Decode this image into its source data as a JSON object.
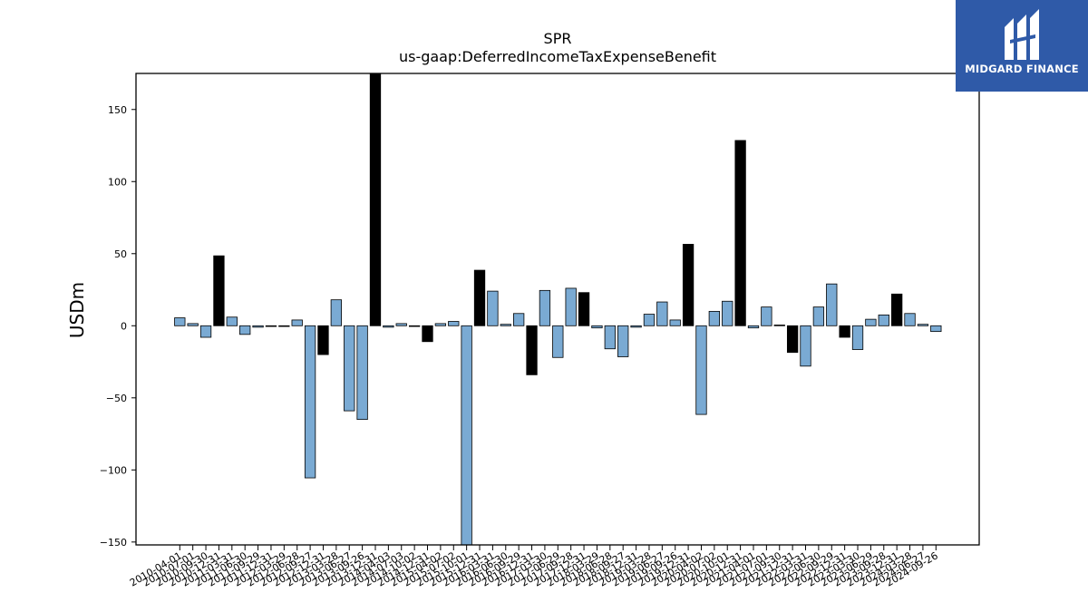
{
  "logo": {
    "text": "MIDGARD FINANCE",
    "icon": "midgard-logo-icon",
    "background": "#2f5aa8"
  },
  "chart_data": {
    "type": "bar",
    "title": "SPR",
    "subtitle": "us-gaap:DeferredIncomeTaxExpenseBenefit",
    "ylabel": "USDm",
    "xlabel": "",
    "ylim": [
      -152,
      175
    ],
    "yticks": [
      -150,
      -100,
      -50,
      0,
      50,
      100,
      150
    ],
    "ytick_labels": [
      "−150",
      "−100",
      "−50",
      "0",
      "50",
      "100",
      "150"
    ],
    "grid": false,
    "colors": {
      "quarter": "#7aaad3",
      "annual": "#000000",
      "edge": "#000000"
    },
    "categories": [
      "2010-04-01",
      "2010-07-01",
      "2010-09-30",
      "2010-12-31",
      "2011-03-31",
      "2011-06-30",
      "2011-09-29",
      "2011-12-31",
      "2012-03-29",
      "2012-06-28",
      "2012-09-27",
      "2012-12-31",
      "2013-03-28",
      "2013-06-27",
      "2013-09-26",
      "2013-12-31",
      "2014-04-03",
      "2014-07-03",
      "2014-10-02",
      "2014-12-31",
      "2015-04-02",
      "2015-07-02",
      "2015-10-01",
      "2015-12-31",
      "2016-03-31",
      "2016-06-30",
      "2016-09-29",
      "2016-12-31",
      "2017-03-30",
      "2017-06-29",
      "2017-09-28",
      "2017-12-31",
      "2018-03-29",
      "2018-06-28",
      "2018-09-27",
      "2018-12-31",
      "2019-03-28",
      "2019-06-27",
      "2019-09-26",
      "2019-12-31",
      "2020-04-02",
      "2020-07-02",
      "2020-10-01",
      "2020-12-31",
      "2021-04-01",
      "2021-07-01",
      "2021-09-30",
      "2021-12-31",
      "2022-03-31",
      "2022-06-30",
      "2022-09-29",
      "2022-12-31",
      "2023-03-30",
      "2023-06-29",
      "2023-09-28",
      "2023-12-31",
      "2024-03-28",
      "2024-06-27",
      "2024-09-26"
    ],
    "values": [
      5.5,
      1.5,
      -8,
      48.5,
      6,
      -6,
      -1,
      0,
      0,
      4,
      -105.5,
      -20,
      18,
      -59,
      -65,
      175,
      -1,
      1.5,
      0,
      -11,
      1.5,
      3,
      -152,
      38.5,
      24,
      1,
      8.5,
      -34,
      24.5,
      -22,
      26,
      23,
      -1.5,
      -16,
      -21.5,
      -1,
      8,
      16.5,
      4,
      56.5,
      -61.5,
      10,
      17,
      128.5,
      -1.5,
      13,
      0.5,
      -18.5,
      -28,
      13,
      29,
      -8,
      -16.5,
      4.5,
      7.5,
      22,
      8.5,
      1,
      -4
    ],
    "annual": [
      false,
      false,
      false,
      true,
      false,
      false,
      false,
      false,
      false,
      false,
      false,
      true,
      false,
      false,
      false,
      true,
      false,
      false,
      false,
      true,
      false,
      false,
      false,
      true,
      false,
      false,
      false,
      true,
      false,
      false,
      false,
      true,
      false,
      false,
      false,
      false,
      false,
      false,
      false,
      true,
      false,
      false,
      false,
      true,
      false,
      false,
      false,
      true,
      false,
      false,
      false,
      true,
      false,
      false,
      false,
      true,
      false,
      false,
      false
    ]
  }
}
